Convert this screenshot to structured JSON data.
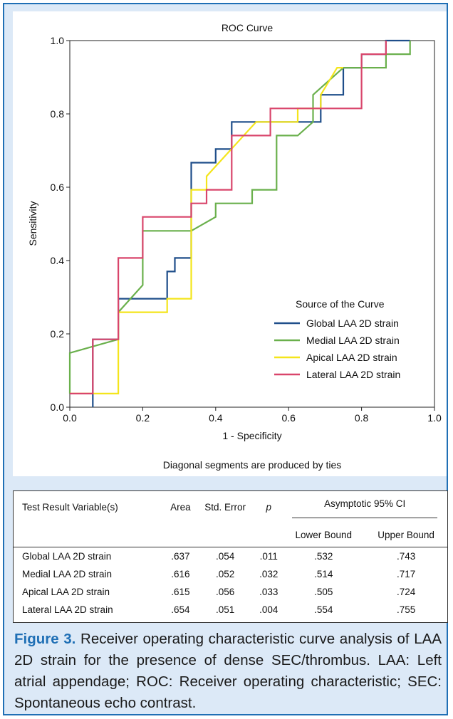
{
  "chart_data": {
    "type": "line",
    "title": "ROC Curve",
    "xlabel": "1 - Specificity",
    "ylabel": "Sensitivity",
    "xlim": [
      0,
      1
    ],
    "ylim": [
      0,
      1
    ],
    "xticks": [
      "0.0",
      "0.2",
      "0.4",
      "0.6",
      "0.8",
      "1.0"
    ],
    "yticks": [
      "0.0",
      "0.2",
      "0.4",
      "0.6",
      "0.8",
      "1.0"
    ],
    "footnote": "Diagonal segments are produced by ties",
    "legend": {
      "title": "Source of the Curve",
      "position": "lower-right"
    },
    "series": [
      {
        "name": "Global LAA 2D strain",
        "color": "#1f4e8a",
        "points": [
          [
            0.063,
            0
          ],
          [
            0.063,
            0.185
          ],
          [
            0.133,
            0.185
          ],
          [
            0.133,
            0.296
          ],
          [
            0.267,
            0.296
          ],
          [
            0.267,
            0.37
          ],
          [
            0.288,
            0.37
          ],
          [
            0.288,
            0.407
          ],
          [
            0.333,
            0.407
          ],
          [
            0.333,
            0.667
          ],
          [
            0.4,
            0.667
          ],
          [
            0.4,
            0.704
          ],
          [
            0.444,
            0.704
          ],
          [
            0.444,
            0.778
          ],
          [
            0.688,
            0.778
          ],
          [
            0.688,
            0.852
          ],
          [
            0.75,
            0.852
          ],
          [
            0.75,
            0.926
          ],
          [
            0.8,
            0.926
          ],
          [
            0.8,
            0.963
          ],
          [
            0.867,
            0.963
          ],
          [
            0.867,
            1.0
          ],
          [
            0.933,
            1.0
          ]
        ]
      },
      {
        "name": "Medial LAA 2D strain",
        "color": "#6ab04c",
        "points": [
          [
            0,
            0.037
          ],
          [
            0,
            0.148
          ],
          [
            0.133,
            0.185
          ],
          [
            0.133,
            0.259
          ],
          [
            0.2,
            0.333
          ],
          [
            0.2,
            0.481
          ],
          [
            0.333,
            0.481
          ],
          [
            0.4,
            0.519
          ],
          [
            0.4,
            0.556
          ],
          [
            0.5,
            0.556
          ],
          [
            0.5,
            0.593
          ],
          [
            0.567,
            0.593
          ],
          [
            0.567,
            0.741
          ],
          [
            0.625,
            0.741
          ],
          [
            0.667,
            0.778
          ],
          [
            0.667,
            0.852
          ],
          [
            0.75,
            0.926
          ],
          [
            0.867,
            0.926
          ],
          [
            0.867,
            0.963
          ],
          [
            0.933,
            0.963
          ],
          [
            0.933,
            1.0
          ]
        ]
      },
      {
        "name": "Apical LAA 2D strain",
        "color": "#f4e51c",
        "points": [
          [
            0,
            0.037
          ],
          [
            0.133,
            0.037
          ],
          [
            0.133,
            0.259
          ],
          [
            0.267,
            0.259
          ],
          [
            0.267,
            0.296
          ],
          [
            0.333,
            0.296
          ],
          [
            0.333,
            0.593
          ],
          [
            0.375,
            0.593
          ],
          [
            0.375,
            0.63
          ],
          [
            0.511,
            0.778
          ],
          [
            0.625,
            0.778
          ],
          [
            0.625,
            0.815
          ],
          [
            0.688,
            0.815
          ],
          [
            0.688,
            0.852
          ],
          [
            0.733,
            0.926
          ],
          [
            0.75,
            0.926
          ]
        ]
      },
      {
        "name": "Lateral LAA 2D strain",
        "color": "#d9456b",
        "points": [
          [
            0,
            0.037
          ],
          [
            0.063,
            0.037
          ],
          [
            0.063,
            0.185
          ],
          [
            0.133,
            0.185
          ],
          [
            0.133,
            0.407
          ],
          [
            0.2,
            0.407
          ],
          [
            0.2,
            0.519
          ],
          [
            0.333,
            0.519
          ],
          [
            0.333,
            0.556
          ],
          [
            0.375,
            0.556
          ],
          [
            0.375,
            0.593
          ],
          [
            0.444,
            0.593
          ],
          [
            0.444,
            0.741
          ],
          [
            0.55,
            0.741
          ],
          [
            0.55,
            0.815
          ],
          [
            0.8,
            0.815
          ],
          [
            0.8,
            0.963
          ],
          [
            0.867,
            0.963
          ],
          [
            0.867,
            1.0
          ]
        ]
      }
    ]
  },
  "table": {
    "headers": {
      "variable": "Test Result Variable(s)",
      "area": "Area",
      "std_error": "Std. Error",
      "p": "p",
      "ci": "Asymptotic 95% CI",
      "lower": "Lower Bound",
      "upper": "Upper Bound"
    },
    "rows": [
      {
        "variable": "Global LAA 2D strain",
        "area": ".637",
        "std_error": ".054",
        "p": ".011",
        "lower": ".532",
        "upper": ".743"
      },
      {
        "variable": "Medial LAA 2D strain",
        "area": ".616",
        "std_error": ".052",
        "p": ".032",
        "lower": ".514",
        "upper": ".717"
      },
      {
        "variable": "Apical LAA 2D strain",
        "area": ".615",
        "std_error": ".056",
        "p": ".033",
        "lower": ".505",
        "upper": ".724"
      },
      {
        "variable": "Lateral LAA 2D strain",
        "area": ".654",
        "std_error": ".051",
        "p": ".004",
        "lower": ".554",
        "upper": ".755"
      }
    ]
  },
  "caption": {
    "label": "Figure 3.",
    "text": " Receiver operating characteristic curve analysis of LAA 2D strain for the presence of dense SEC/thrombus. LAA: Left atrial appendage; ROC: Receiver operating characteristic; SEC: Spontaneous echo contrast."
  },
  "colors": {
    "frame": "#1f6fb5",
    "background": "#dce9f7"
  }
}
